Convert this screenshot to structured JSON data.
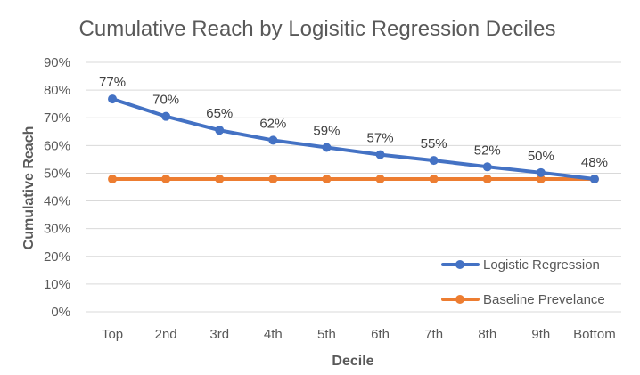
{
  "chart_data": {
    "type": "line",
    "title": "Cumulative Reach by Logisitic Regression Deciles",
    "xlabel": "Decile",
    "ylabel": "Cumulative Reach",
    "categories": [
      "Top",
      "2nd",
      "3rd",
      "4th",
      "5th",
      "6th",
      "7th",
      "8th",
      "9th",
      "Bottom"
    ],
    "ylim": [
      0,
      0.9
    ],
    "yticks": [
      0,
      0.1,
      0.2,
      0.3,
      0.4,
      0.5,
      0.6,
      0.7,
      0.8,
      0.9
    ],
    "ytick_labels": [
      "0%",
      "10%",
      "20%",
      "30%",
      "40%",
      "50%",
      "60%",
      "70%",
      "80%",
      "90%"
    ],
    "grid": true,
    "legend_position": "bottom-right",
    "series": [
      {
        "name": "Logistic Regression",
        "color": "#4472C4",
        "values": [
          0.768,
          0.705,
          0.655,
          0.619,
          0.593,
          0.567,
          0.546,
          0.523,
          0.502,
          0.479
        ],
        "data_labels": [
          "77%",
          "70%",
          "65%",
          "62%",
          "59%",
          "57%",
          "55%",
          "52%",
          "50%",
          "48%"
        ]
      },
      {
        "name": "Baseline Prevelance",
        "color": "#ED7D31",
        "values": [
          0.479,
          0.479,
          0.479,
          0.479,
          0.479,
          0.479,
          0.479,
          0.479,
          0.479,
          0.479
        ]
      }
    ]
  }
}
